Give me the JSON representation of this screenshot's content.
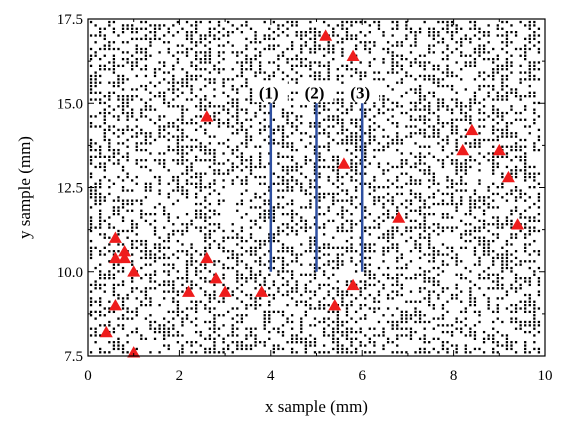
{
  "colors": {
    "background": "#ffffff",
    "axis": "#000000",
    "dots": "#000000",
    "triangles": "#ee1c1c",
    "lines": "#2e4fa0"
  },
  "chart_data": {
    "type": "scatter",
    "xlabel": "x sample (mm)",
    "ylabel": "y sample (mm)",
    "xlim": [
      0,
      10
    ],
    "ylim": [
      7.5,
      17.5
    ],
    "x_ticks": [
      0,
      2,
      4,
      6,
      8,
      10
    ],
    "x_tick_labels": [
      "0",
      "2",
      "4",
      "6",
      "8",
      "10"
    ],
    "y_ticks": [
      7.5,
      10.0,
      12.5,
      15.0,
      17.5
    ],
    "y_tick_labels": [
      "7.5",
      "10.0",
      "12.5",
      "15.0",
      "17.5"
    ],
    "grid": false,
    "legend": "none",
    "series": [
      {
        "marker": "square-dot",
        "color": "#000000",
        "description": "dense pseudo-random dot field on a 0.2 mm x 0.2 mm grid",
        "grid_step_mm": 0.2
      },
      {
        "marker": "triangle",
        "color": "#ee1c1c",
        "points": [
          [
            0.4,
            8.2
          ],
          [
            0.6,
            9.0
          ],
          [
            0.6,
            10.4
          ],
          [
            0.6,
            11.0
          ],
          [
            0.8,
            10.4
          ],
          [
            0.8,
            10.6
          ],
          [
            1.0,
            10.0
          ],
          [
            1.0,
            7.6
          ],
          [
            2.2,
            9.4
          ],
          [
            2.6,
            10.4
          ],
          [
            2.6,
            14.6
          ],
          [
            2.8,
            9.8
          ],
          [
            3.0,
            9.4
          ],
          [
            3.8,
            9.4
          ],
          [
            5.2,
            17.0
          ],
          [
            5.4,
            9.0
          ],
          [
            5.6,
            13.2
          ],
          [
            5.8,
            16.4
          ],
          [
            5.8,
            9.6
          ],
          [
            6.8,
            11.6
          ],
          [
            8.2,
            13.6
          ],
          [
            8.4,
            14.2
          ],
          [
            9.0,
            13.6
          ],
          [
            9.2,
            12.8
          ],
          [
            9.4,
            11.4
          ]
        ]
      }
    ],
    "annotation_lines": [
      {
        "label": "(1)",
        "x": 4,
        "y0": 10.0,
        "y1": 15.0
      },
      {
        "label": "(2)",
        "x": 5,
        "y0": 10.0,
        "y1": 15.0
      },
      {
        "label": "(3)",
        "x": 6,
        "y0": 10.0,
        "y1": 15.0
      }
    ]
  }
}
